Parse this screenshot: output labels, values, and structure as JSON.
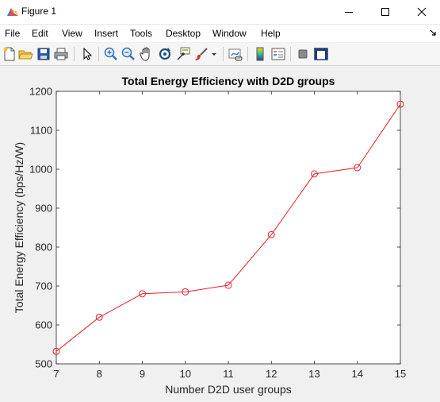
{
  "window": {
    "title": "Figure 1"
  },
  "menubar": {
    "items": [
      "File",
      "Edit",
      "View",
      "Insert",
      "Tools",
      "Desktop",
      "Window",
      "Help"
    ]
  },
  "toolbar": {
    "icons": [
      "new-figure-icon",
      "open-file-icon",
      "save-icon",
      "print-icon",
      "edit-plot-arrow-icon",
      "zoom-in-icon",
      "zoom-out-icon",
      "pan-hand-icon",
      "rotate-3d-icon",
      "data-cursor-icon",
      "brush-icon",
      "brush-dropdown-icon",
      "link-plot-icon",
      "insert-colorbar-icon",
      "insert-legend-icon",
      "hide-plot-tools-icon",
      "show-plot-tools-icon"
    ]
  },
  "colors": {
    "series": "#e8212a",
    "axes": "#262626",
    "plot_background": "#ffffff",
    "figure_background": "#f0f0f0"
  },
  "chart_data": {
    "type": "line",
    "title": "Total Energy Efficiency with D2D groups",
    "xlabel": "Number D2D user groups",
    "ylabel": "Total Energy Efficiency (bps/Hz/W)",
    "xlim": [
      7,
      15
    ],
    "ylim": [
      500,
      1200
    ],
    "xticks": [
      7,
      8,
      9,
      10,
      11,
      12,
      13,
      14,
      15
    ],
    "yticks": [
      500,
      600,
      700,
      800,
      900,
      1000,
      1100,
      1200
    ],
    "grid": false,
    "marker": "circle",
    "x": [
      7,
      8,
      9,
      10,
      11,
      12,
      13,
      14,
      15
    ],
    "values": [
      532,
      620,
      680,
      685,
      702,
      832,
      988,
      1004,
      1167
    ]
  }
}
